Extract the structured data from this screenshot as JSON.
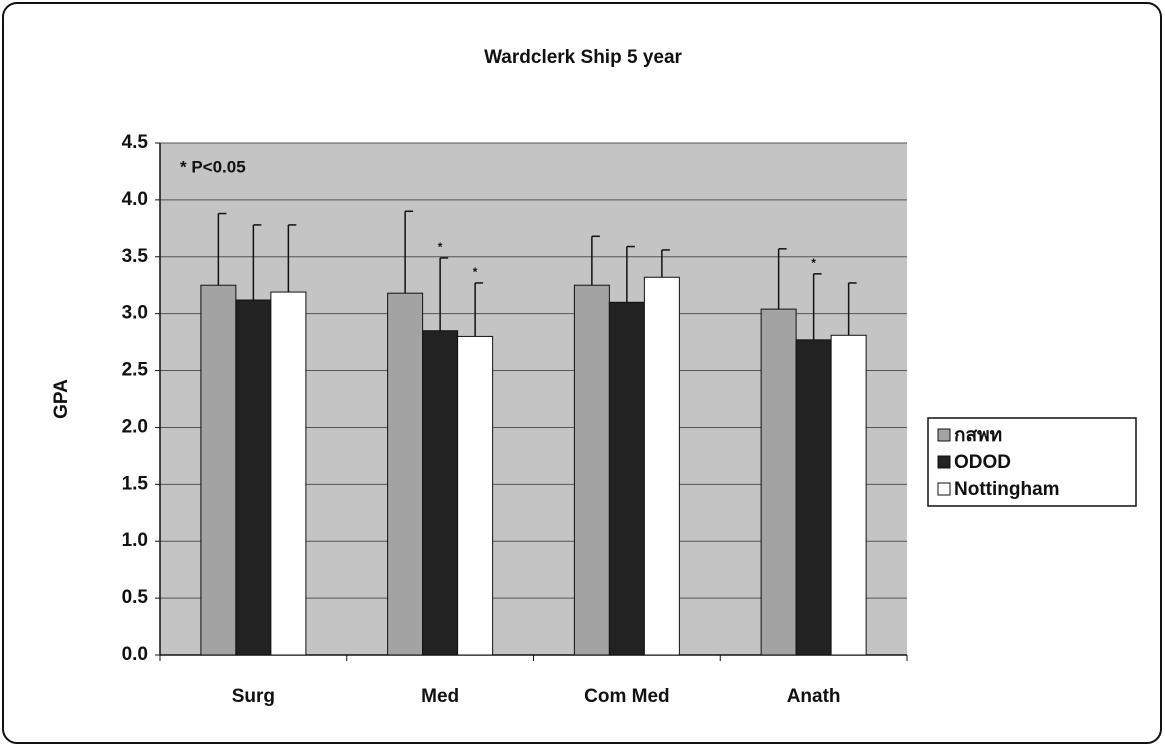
{
  "chart_data": {
    "type": "bar",
    "title": "Wardclerk Ship 5 year",
    "y_label": "GPA",
    "annotation": "* P<0.05",
    "categories": [
      "Surg",
      "Med",
      "Com Med",
      "Anath"
    ],
    "series": [
      {
        "name": "กสพท",
        "color": "#a3a3a3",
        "values": [
          3.25,
          3.18,
          3.25,
          3.04
        ],
        "error": [
          0.63,
          0.72,
          0.43,
          0.53
        ],
        "marks": [
          null,
          null,
          null,
          null
        ]
      },
      {
        "name": "ODOD",
        "color": "#222222",
        "values": [
          3.12,
          2.85,
          3.1,
          2.77
        ],
        "error": [
          0.66,
          0.64,
          0.49,
          0.58
        ],
        "marks": [
          null,
          "*",
          null,
          "*"
        ]
      },
      {
        "name": "Nottingham",
        "color": "#ffffff",
        "values": [
          3.19,
          2.8,
          3.32,
          2.81
        ],
        "error": [
          0.59,
          0.47,
          0.24,
          0.46
        ],
        "marks": [
          null,
          "*",
          null,
          null
        ]
      }
    ],
    "ylim": [
      0,
      4.5
    ],
    "yticks": [
      {
        "value": 0,
        "label": "0.0"
      },
      0.5,
      {
        "value": 1,
        "label": "1.0"
      },
      1.5,
      {
        "value": 2,
        "label": "2.0"
      },
      2.5,
      {
        "value": 3,
        "label": "3.0"
      },
      3.5,
      {
        "value": 4,
        "label": "4.0"
      },
      4.5
    ],
    "grid": true,
    "legend": "right"
  }
}
